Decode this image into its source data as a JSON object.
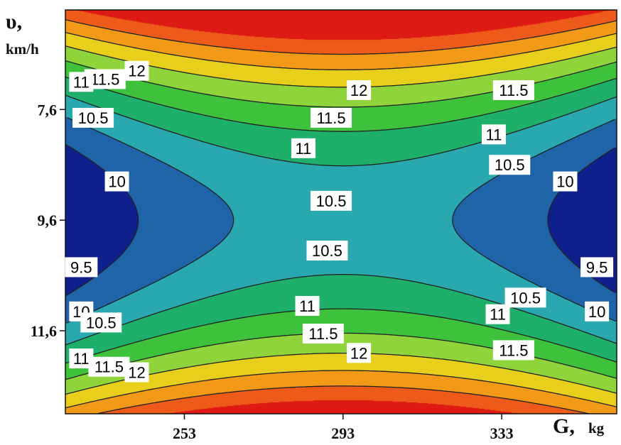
{
  "chart_data": {
    "type": "heatmap",
    "subtype": "filled-contour",
    "x_axis": {
      "title": "G,",
      "unit": "kg",
      "ticks": [
        "253",
        "293",
        "333"
      ]
    },
    "y_axis": {
      "title": "υ,",
      "unit": "km/h",
      "ticks": [
        "7,6",
        "9,6",
        "11,6"
      ]
    },
    "x_range": [
      223,
      362
    ],
    "y_range": [
      5.8,
      13.1
    ],
    "levels": [
      9.0,
      9.5,
      10.0,
      10.5,
      11.0,
      11.5,
      12.0,
      12.5,
      13.0,
      13.5
    ],
    "band_colors": [
      "#0f1f8c",
      "#1f63a8",
      "#2aa8b0",
      "#1eaf6a",
      "#3ec23c",
      "#8ed43a",
      "#e8cf1c",
      "#f29a18",
      "#ed5a1a",
      "#de1a14"
    ],
    "contour_labels": [
      {
        "text": "12",
        "G": 241,
        "v": 6.9
      },
      {
        "text": "11.5",
        "G": 233,
        "v": 7.05
      },
      {
        "text": "11",
        "G": 227,
        "v": 7.1
      },
      {
        "text": "10.5",
        "G": 230,
        "v": 7.75
      },
      {
        "text": "12",
        "G": 297,
        "v": 7.25
      },
      {
        "text": "11.5",
        "G": 290,
        "v": 7.75
      },
      {
        "text": "11",
        "G": 283,
        "v": 8.3
      },
      {
        "text": "11.5",
        "G": 336,
        "v": 7.25
      },
      {
        "text": "11",
        "G": 331,
        "v": 8.05
      },
      {
        "text": "10.5",
        "G": 335,
        "v": 8.6
      },
      {
        "text": "10",
        "G": 236,
        "v": 8.9
      },
      {
        "text": "10.5",
        "G": 290,
        "v": 9.25
      },
      {
        "text": "10",
        "G": 349,
        "v": 8.9
      },
      {
        "text": "10.5",
        "G": 289,
        "v": 10.15
      },
      {
        "text": "9.5",
        "G": 227,
        "v": 10.45
      },
      {
        "text": "9.5",
        "G": 357,
        "v": 10.45
      },
      {
        "text": "10.5",
        "G": 339,
        "v": 11.0
      },
      {
        "text": "10",
        "G": 227,
        "v": 11.25
      },
      {
        "text": "10",
        "G": 357,
        "v": 11.25
      },
      {
        "text": "11",
        "G": 284,
        "v": 11.15
      },
      {
        "text": "11",
        "G": 332,
        "v": 11.3
      },
      {
        "text": "10.5",
        "G": 232,
        "v": 11.45
      },
      {
        "text": "11.5",
        "G": 288,
        "v": 11.65
      },
      {
        "text": "12",
        "G": 297,
        "v": 12.0
      },
      {
        "text": "11.5",
        "G": 336,
        "v": 11.95
      },
      {
        "text": "11",
        "G": 227,
        "v": 12.1
      },
      {
        "text": "11.5",
        "G": 234,
        "v": 12.25
      },
      {
        "text": "12",
        "G": 241,
        "v": 12.35
      }
    ]
  }
}
